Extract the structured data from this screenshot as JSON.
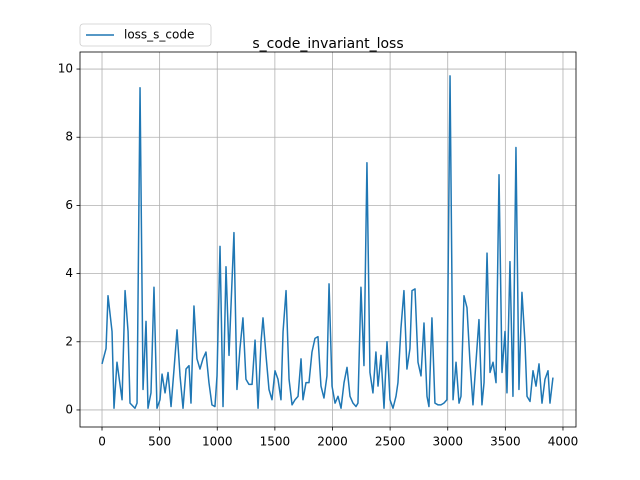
{
  "chart_data": {
    "type": "line",
    "title": "s_code_invariant_loss",
    "x": [
      0,
      35,
      52,
      87,
      104,
      130,
      174,
      200,
      226,
      243,
      286,
      304,
      330,
      356,
      382,
      399,
      425,
      451,
      477,
      503,
      521,
      547,
      573,
      599,
      625,
      651,
      677,
      703,
      729,
      755,
      772,
      798,
      824,
      850,
      876,
      902,
      928,
      954,
      980,
      998,
      1024,
      1050,
      1076,
      1102,
      1145,
      1171,
      1197,
      1223,
      1249,
      1275,
      1302,
      1328,
      1354,
      1380,
      1397,
      1423,
      1449,
      1475,
      1501,
      1527,
      1553,
      1571,
      1597,
      1623,
      1649,
      1675,
      1701,
      1727,
      1744,
      1770,
      1796,
      1822,
      1848,
      1874,
      1900,
      1926,
      1952,
      1970,
      1996,
      2022,
      2048,
      2074,
      2100,
      2126,
      2152,
      2178,
      2204,
      2221,
      2247,
      2273,
      2299,
      2325,
      2351,
      2377,
      2395,
      2421,
      2447,
      2473,
      2499,
      2525,
      2551,
      2568,
      2594,
      2620,
      2646,
      2672,
      2690,
      2716,
      2742,
      2768,
      2794,
      2820,
      2837,
      2863,
      2889,
      2915,
      2941,
      2967,
      2993,
      3020,
      3046,
      3072,
      3098,
      3115,
      3141,
      3167,
      3193,
      3219,
      3245,
      3271,
      3297,
      3315,
      3341,
      3367,
      3393,
      3419,
      3445,
      3471,
      3497,
      3514,
      3540,
      3566,
      3592,
      3618,
      3644,
      3670,
      3688,
      3714,
      3740,
      3766,
      3792,
      3818,
      3844,
      3870,
      3887,
      3913
    ],
    "series": [
      {
        "name": "loss_s_code",
        "color": "#1f77b4",
        "values": [
          1.35,
          1.8,
          3.35,
          2.3,
          0.05,
          1.4,
          0.3,
          3.5,
          2.3,
          0.2,
          0.05,
          0.2,
          9.45,
          0.6,
          2.6,
          0.05,
          0.5,
          3.6,
          0.05,
          0.3,
          1.05,
          0.5,
          1.1,
          0.1,
          1.2,
          2.35,
          1.0,
          0.05,
          1.2,
          1.3,
          0.2,
          3.05,
          1.5,
          1.2,
          1.5,
          1.7,
          0.8,
          0.15,
          0.1,
          1.0,
          4.8,
          0.1,
          4.2,
          1.6,
          5.2,
          0.6,
          1.8,
          2.7,
          0.9,
          0.75,
          0.75,
          2.05,
          0.05,
          2.0,
          2.7,
          1.6,
          0.6,
          0.3,
          1.15,
          0.9,
          0.3,
          2.3,
          3.5,
          0.9,
          0.15,
          0.3,
          0.4,
          1.5,
          0.3,
          0.8,
          0.8,
          1.7,
          2.1,
          2.15,
          0.7,
          0.35,
          1.0,
          3.7,
          0.7,
          0.2,
          0.4,
          0.05,
          0.8,
          1.25,
          0.4,
          0.2,
          0.1,
          0.2,
          3.6,
          1.3,
          7.25,
          1.1,
          0.5,
          1.7,
          0.7,
          1.6,
          0.05,
          2.0,
          0.3,
          0.05,
          0.4,
          0.8,
          2.4,
          3.5,
          1.2,
          1.8,
          3.5,
          3.55,
          1.4,
          1.0,
          2.55,
          0.4,
          0.1,
          2.7,
          0.2,
          0.15,
          0.15,
          0.2,
          0.3,
          9.8,
          0.3,
          1.4,
          0.2,
          0.4,
          3.35,
          3.0,
          1.4,
          0.15,
          1.4,
          2.65,
          0.15,
          0.8,
          4.6,
          1.1,
          1.4,
          0.8,
          6.9,
          1.1,
          2.3,
          0.5,
          4.35,
          0.4,
          7.7,
          0.6,
          3.45,
          2.0,
          0.4,
          0.25,
          1.15,
          0.7,
          1.35,
          0.2,
          0.9,
          1.15,
          0.2,
          0.95
        ]
      }
    ],
    "xlim": [
      -191,
      4113
    ],
    "xticks": [
      0,
      500,
      1000,
      1500,
      2000,
      2500,
      3000,
      3500,
      4000
    ],
    "ylim": [
      -0.5,
      10.5
    ],
    "yticks": [
      0,
      2,
      4,
      6,
      8,
      10
    ],
    "grid": true,
    "legend": "upper left"
  }
}
